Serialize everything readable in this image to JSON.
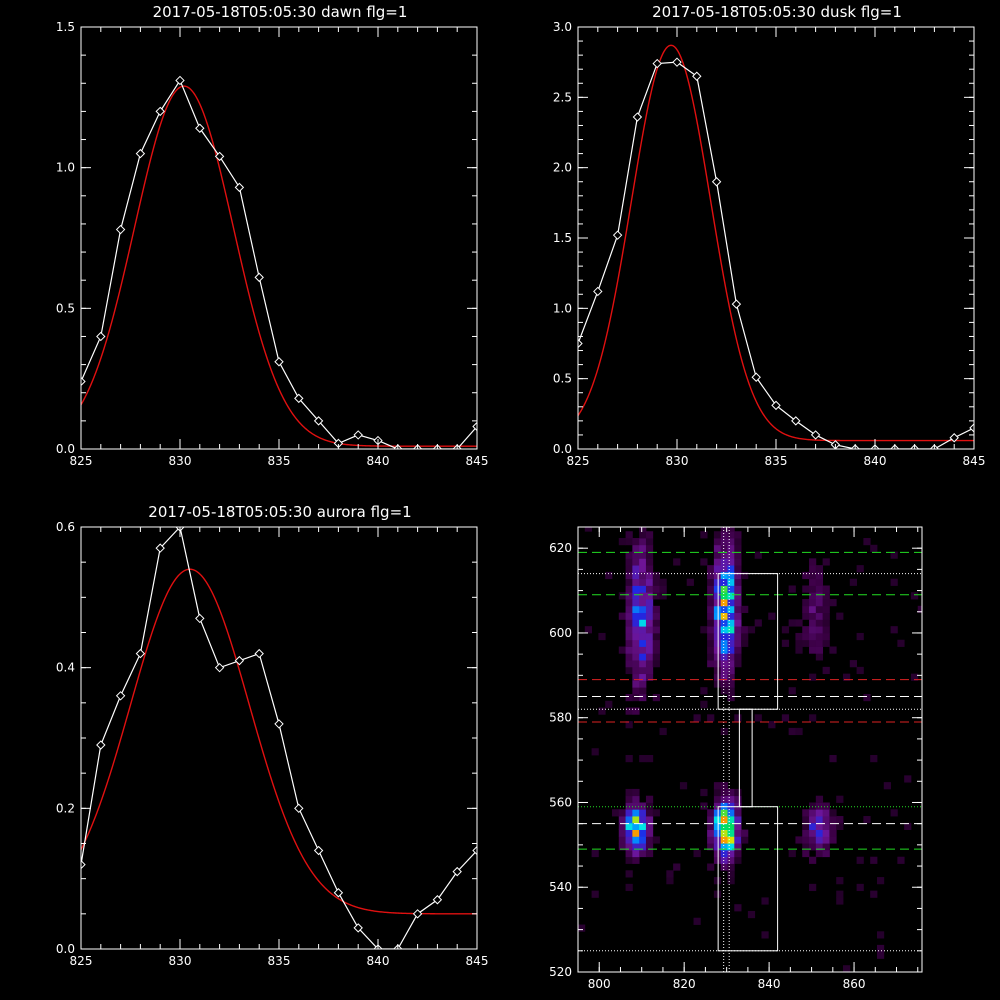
{
  "colors": {
    "background": "#000000",
    "axes": "#ffffff",
    "data_line": "#ffffff",
    "fit_line": "#e01010",
    "green_guide": "#22dd22",
    "red_guide": "#dd2222",
    "white_guide": "#ffffff"
  },
  "chart_data": [
    {
      "type": "line",
      "title": "2017-05-18T05:05:30 dawn flg=1",
      "xlim": [
        825,
        845
      ],
      "ylim": [
        0,
        1.5
      ],
      "xticks": [
        "825",
        "830",
        "835",
        "840",
        "845"
      ],
      "yticks": [
        "0.0",
        "0.5",
        "1.0",
        "1.5"
      ],
      "series": [
        {
          "role": "data",
          "x": [
            825,
            826,
            827,
            828,
            829,
            830,
            831,
            832,
            833,
            834,
            835,
            836,
            837,
            838,
            839,
            840,
            841,
            842,
            843,
            844,
            845
          ],
          "y": [
            0.24,
            0.4,
            0.78,
            1.05,
            1.2,
            1.31,
            1.14,
            1.04,
            0.93,
            0.61,
            0.31,
            0.18,
            0.1,
            0.02,
            0.05,
            0.03,
            0.0,
            0.0,
            0.0,
            0.0,
            0.08
          ]
        },
        {
          "role": "fit",
          "model": {
            "amplitude": 1.28,
            "center": 830.2,
            "sigma": 2.5,
            "offset": 0.01
          }
        }
      ]
    },
    {
      "type": "line",
      "title": "2017-05-18T05:05:30 dusk flg=1",
      "xlim": [
        825,
        845
      ],
      "ylim": [
        0,
        3.0
      ],
      "xticks": [
        "825",
        "830",
        "835",
        "840",
        "845"
      ],
      "yticks": [
        "0.0",
        "0.5",
        "1.0",
        "1.5",
        "2.0",
        "2.5",
        "3.0"
      ],
      "series": [
        {
          "role": "data",
          "x": [
            825,
            826,
            827,
            828,
            829,
            830,
            831,
            832,
            833,
            834,
            835,
            836,
            837,
            838,
            839,
            840,
            841,
            842,
            843,
            844,
            845
          ],
          "y": [
            0.75,
            1.12,
            1.52,
            2.36,
            2.74,
            2.75,
            2.65,
            1.9,
            1.03,
            0.51,
            0.31,
            0.2,
            0.1,
            0.03,
            0.0,
            0.0,
            0.0,
            0.0,
            0.0,
            0.08,
            0.15
          ]
        },
        {
          "role": "fit",
          "model": {
            "amplitude": 2.81,
            "center": 829.7,
            "sigma": 2.0,
            "offset": 0.06
          }
        }
      ]
    },
    {
      "type": "line",
      "title": "2017-05-18T05:05:30 aurora flg=1",
      "xlim": [
        825,
        845
      ],
      "ylim": [
        0,
        0.6
      ],
      "xticks": [
        "825",
        "830",
        "835",
        "840",
        "845"
      ],
      "yticks": [
        "0.0",
        "0.2",
        "0.4",
        "0.6"
      ],
      "series": [
        {
          "role": "data",
          "x": [
            825,
            826,
            827,
            828,
            829,
            830,
            831,
            832,
            833,
            834,
            835,
            836,
            837,
            838,
            839,
            840,
            841,
            842,
            843,
            844,
            845
          ],
          "y": [
            0.12,
            0.29,
            0.36,
            0.42,
            0.57,
            0.6,
            0.47,
            0.4,
            0.41,
            0.42,
            0.32,
            0.2,
            0.14,
            0.08,
            0.03,
            0.0,
            0.0,
            0.05,
            0.07,
            0.11,
            0.14
          ]
        },
        {
          "role": "fit",
          "model": {
            "amplitude": 0.49,
            "center": 830.5,
            "sigma": 3.0,
            "offset": 0.05
          }
        }
      ]
    },
    {
      "type": "heatmap",
      "xlim": [
        795,
        876
      ],
      "ylim": [
        520,
        625
      ],
      "xticks": [
        "800",
        "820",
        "840",
        "860"
      ],
      "yticks": [
        "520",
        "540",
        "560",
        "580",
        "600",
        "620"
      ],
      "bright_sources": [
        {
          "x": 808,
          "y": 553,
          "strength": 0.75,
          "sx": 1.8,
          "sy": 3.5
        },
        {
          "x": 829,
          "y": 553,
          "strength": 1.0,
          "sx": 1.8,
          "sy": 4.0
        },
        {
          "x": 851,
          "y": 553,
          "strength": 0.35,
          "sx": 2.0,
          "sy": 3.5
        },
        {
          "x": 809,
          "y": 603,
          "strength": 0.42,
          "sx": 2.0,
          "sy": 10.0
        },
        {
          "x": 829,
          "y": 605,
          "strength": 0.68,
          "sx": 1.8,
          "sy": 9.0
        },
        {
          "x": 850,
          "y": 603,
          "strength": 0.14,
          "sx": 2.0,
          "sy": 8.0
        }
      ],
      "vertical_dotted_lines_x": [
        829.3,
        830.6
      ],
      "horizontal_lines": [
        {
          "y": 619,
          "color": "green",
          "style": "dashed"
        },
        {
          "y": 609,
          "color": "green",
          "style": "dashed"
        },
        {
          "y": 589,
          "color": "red",
          "style": "dashed"
        },
        {
          "y": 585,
          "color": "white",
          "style": "dashed"
        },
        {
          "y": 579,
          "color": "red",
          "style": "dashed"
        },
        {
          "y": 555,
          "color": "white",
          "style": "dashed"
        },
        {
          "y": 549,
          "color": "green",
          "style": "dashed"
        },
        {
          "y": 614,
          "color": "white",
          "style": "dotted"
        },
        {
          "y": 582,
          "color": "white",
          "style": "dotted"
        },
        {
          "y": 559,
          "color": "green",
          "style": "dotted"
        },
        {
          "y": 525,
          "color": "white",
          "style": "dotted"
        }
      ],
      "boxes": [
        {
          "x0": 828,
          "x1": 842,
          "y0": 582,
          "y1": 614
        },
        {
          "x0": 833,
          "x1": 836,
          "y0": 559,
          "y1": 582
        },
        {
          "x0": 828,
          "x1": 842,
          "y0": 525,
          "y1": 559
        }
      ]
    }
  ]
}
